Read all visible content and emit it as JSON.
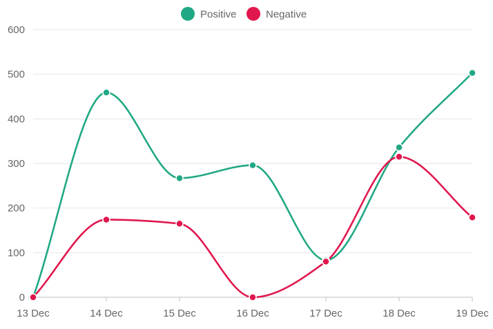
{
  "chart_data": {
    "type": "line",
    "categories": [
      "13 Dec",
      "14 Dec",
      "15 Dec",
      "16 Dec",
      "17 Dec",
      "18 Dec",
      "19 Dec"
    ],
    "series": [
      {
        "name": "Positive",
        "color": "#20a884",
        "values": [
          0,
          459,
          267,
          296,
          83,
          336,
          503
        ]
      },
      {
        "name": "Negative",
        "color": "#e0174d",
        "values": [
          0,
          174,
          165,
          0,
          80,
          315,
          179
        ]
      }
    ],
    "yticks": [
      "0",
      "100",
      "200",
      "300",
      "400",
      "500",
      "600"
    ],
    "ylim": [
      0,
      600
    ],
    "title": "",
    "xlabel": "",
    "ylabel": "",
    "grid": true,
    "legend": "top-center",
    "axis_color": "#bfbfbf",
    "grid_color": "#e6e6e6",
    "tick_label_color": "#666666"
  }
}
